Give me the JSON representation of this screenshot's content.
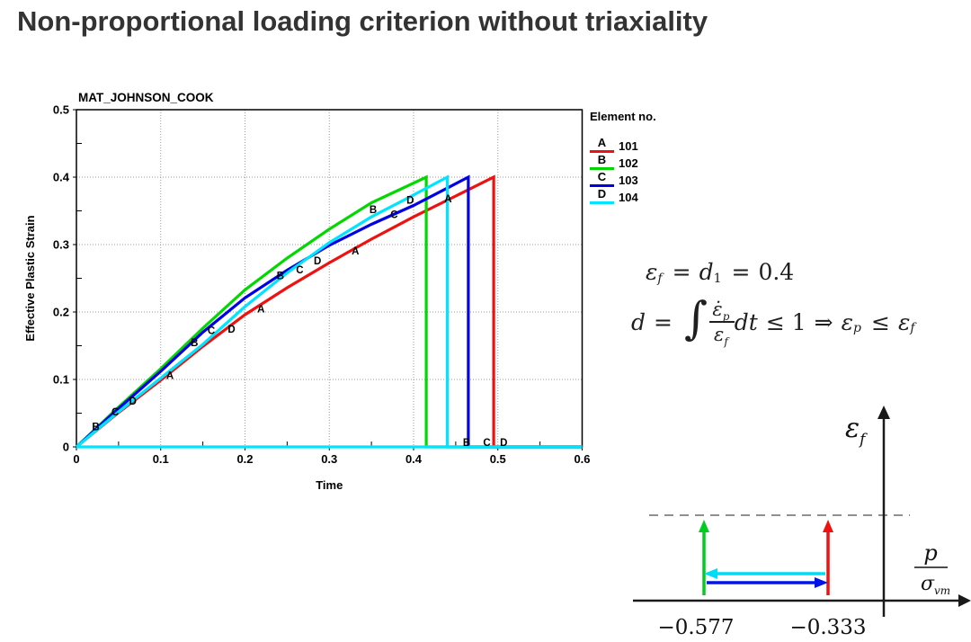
{
  "title": "Non-proportional loading criterion without triaxiality",
  "chart_data": {
    "type": "line",
    "title": "MAT_JOHNSON_COOK",
    "xlabel": "Time",
    "ylabel": "Effective Plastic Strain",
    "xlim": [
      0,
      0.6
    ],
    "ylim": [
      0,
      0.5
    ],
    "xticks": [
      "0",
      "0.1",
      "0.2",
      "0.3",
      "0.4",
      "0.5",
      "0.6"
    ],
    "yticks": [
      "0",
      "0.1",
      "0.2",
      "0.3",
      "0.4",
      "0.5"
    ],
    "grid": true,
    "legend_title": "Element no.",
    "legend_position": "right",
    "series": [
      {
        "name": "A 101",
        "letter": "A",
        "number": "101",
        "color": "#f01010",
        "points": [
          [
            0,
            0
          ],
          [
            0.05,
            0.051
          ],
          [
            0.1,
            0.099
          ],
          [
            0.15,
            0.149
          ],
          [
            0.2,
            0.196
          ],
          [
            0.25,
            0.236
          ],
          [
            0.3,
            0.273
          ],
          [
            0.35,
            0.308
          ],
          [
            0.4,
            0.341
          ],
          [
            0.45,
            0.372
          ],
          [
            0.495,
            0.4
          ],
          [
            0.495,
            0
          ],
          [
            0.6,
            0
          ]
        ]
      },
      {
        "name": "B 102",
        "letter": "B",
        "number": "102",
        "color": "#00d800",
        "points": [
          [
            0,
            0
          ],
          [
            0.05,
            0.059
          ],
          [
            0.1,
            0.116
          ],
          [
            0.15,
            0.176
          ],
          [
            0.2,
            0.233
          ],
          [
            0.25,
            0.28
          ],
          [
            0.3,
            0.323
          ],
          [
            0.35,
            0.362
          ],
          [
            0.415,
            0.4
          ],
          [
            0.415,
            0
          ],
          [
            0.6,
            0
          ]
        ]
      },
      {
        "name": "C 103",
        "letter": "C",
        "number": "103",
        "color": "#0000e8",
        "points": [
          [
            0,
            0
          ],
          [
            0.05,
            0.057
          ],
          [
            0.1,
            0.112
          ],
          [
            0.15,
            0.17
          ],
          [
            0.2,
            0.221
          ],
          [
            0.25,
            0.262
          ],
          [
            0.3,
            0.299
          ],
          [
            0.35,
            0.33
          ],
          [
            0.4,
            0.358
          ],
          [
            0.465,
            0.4
          ],
          [
            0.465,
            0
          ],
          [
            0.6,
            0
          ]
        ]
      },
      {
        "name": "D 104",
        "letter": "D",
        "number": "104",
        "color": "#00e5ff",
        "points": [
          [
            0,
            0
          ],
          [
            0.05,
            0.052
          ],
          [
            0.1,
            0.102
          ],
          [
            0.15,
            0.152
          ],
          [
            0.2,
            0.208
          ],
          [
            0.25,
            0.258
          ],
          [
            0.3,
            0.303
          ],
          [
            0.35,
            0.341
          ],
          [
            0.39,
            0.367
          ],
          [
            0.44,
            0.4
          ],
          [
            0.44,
            0
          ],
          [
            0.6,
            0
          ]
        ]
      }
    ],
    "zero_line": {
      "color": "#00e5ff",
      "y": 0,
      "x_from": 0,
      "x_to": 0.6
    },
    "curve_labels": [
      {
        "letter": "B",
        "x": 0.023,
        "y": 0.03
      },
      {
        "letter": "C",
        "x": 0.046,
        "y": 0.052
      },
      {
        "letter": "D",
        "x": 0.067,
        "y": 0.068
      },
      {
        "letter": "A",
        "x": 0.111,
        "y": 0.106
      },
      {
        "letter": "B",
        "x": 0.14,
        "y": 0.155
      },
      {
        "letter": "C",
        "x": 0.16,
        "y": 0.173
      },
      {
        "letter": "D",
        "x": 0.184,
        "y": 0.175
      },
      {
        "letter": "A",
        "x": 0.219,
        "y": 0.205
      },
      {
        "letter": "B",
        "x": 0.242,
        "y": 0.254
      },
      {
        "letter": "C",
        "x": 0.265,
        "y": 0.263
      },
      {
        "letter": "D",
        "x": 0.286,
        "y": 0.276
      },
      {
        "letter": "A",
        "x": 0.331,
        "y": 0.291
      },
      {
        "letter": "B",
        "x": 0.352,
        "y": 0.352
      },
      {
        "letter": "C",
        "x": 0.377,
        "y": 0.345
      },
      {
        "letter": "D",
        "x": 0.396,
        "y": 0.366
      },
      {
        "letter": "A",
        "x": 0.441,
        "y": 0.368
      },
      {
        "letter": "B",
        "x": 0.463,
        "y": 0.007
      },
      {
        "letter": "C",
        "x": 0.487,
        "y": 0.007
      },
      {
        "letter": "D",
        "x": 0.507,
        "y": 0.007
      }
    ]
  },
  "formulas": {
    "line1": {
      "eps": "ε",
      "eps_sub": "f",
      "eq1": "=",
      "d": "d",
      "d_sub": "1",
      "eq2": "=",
      "value": "0.4"
    },
    "line2": {
      "d": "d",
      "eq": "=",
      "integral": "∫",
      "num": "ε̇",
      "num_sub": "p",
      "den": "ε",
      "den_sub": "f",
      "dt": "dt",
      "leq_one": "≤ 1",
      "implies": "⇒",
      "eps_p": "ε",
      "eps_p_sub": "p",
      "leq": "≤",
      "eps_f": "ε",
      "eps_f_sub": "f"
    }
  },
  "diagram": {
    "ylabel": {
      "symbol": "ε",
      "sub": "f"
    },
    "xlabel": {
      "num": "p",
      "den": "σ",
      "den_sub": "vm"
    },
    "x_values": [
      "−0.577",
      "−0.333"
    ],
    "colors": {
      "axis": "#1a1a1a",
      "dashed": "#8f8f8f",
      "green_arrow": "#00cc22",
      "red_arrow": "#f01010",
      "cyan_arrow": "#00dcf5",
      "blue_arrow": "#0014e8",
      "label": "#111111"
    }
  }
}
